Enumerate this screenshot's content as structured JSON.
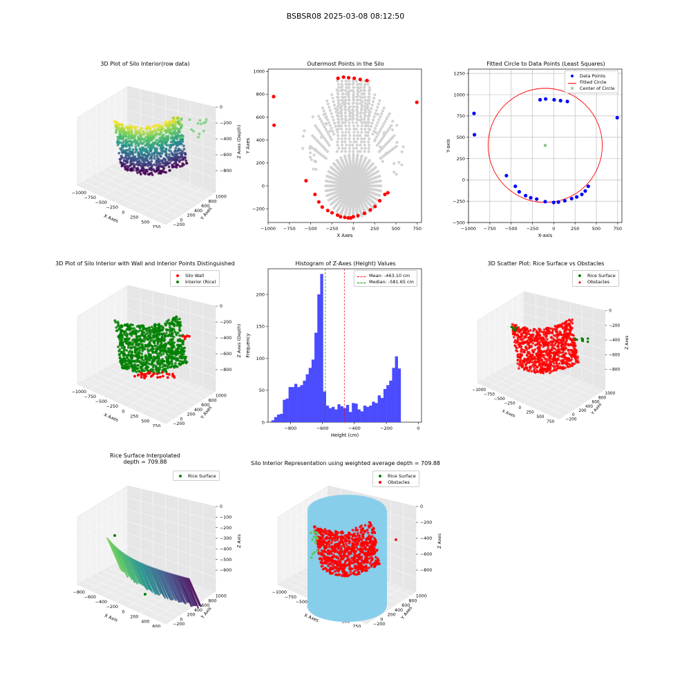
{
  "figure": {
    "suptitle": "BSBSR08 2025-03-08 08:12:50"
  },
  "panels": {
    "p1": {
      "title": "3D Plot of Silo Interior(row data)",
      "xlabel": "X Axes",
      "ylabel": "Y Axes",
      "zlabel": "Z Axes (Depth)",
      "xticks": [
        "−1000",
        "−750",
        "−500",
        "−250",
        "0",
        "250",
        "500",
        "750"
      ],
      "yticks": [
        "−200",
        "0",
        "200",
        "400",
        "600",
        "800",
        "1000"
      ],
      "zticks": [
        "0",
        "−200",
        "−400",
        "−600",
        "−800"
      ]
    },
    "p2": {
      "title": "Outermost Points in the Silo",
      "xlabel": "X Axes",
      "ylabel": "Y Axes",
      "xticks": [
        "−1000",
        "−750",
        "−500",
        "−250",
        "0",
        "250",
        "500",
        "750"
      ],
      "yticks": [
        "−200",
        "0",
        "200",
        "400",
        "600",
        "800",
        "1000"
      ]
    },
    "p3": {
      "title": "Fitted Circle to Data Points (Least Squares)",
      "xlabel": "X-axis",
      "ylabel": "Y-axis",
      "xticks": [
        "−1000",
        "−750",
        "−500",
        "−250",
        "0",
        "250",
        "500",
        "750"
      ],
      "yticks": [
        "−500",
        "−250",
        "0",
        "250",
        "500",
        "750",
        "1000",
        "1250"
      ],
      "legend": [
        "Data Points",
        "Fitted Circle",
        "Center of Circle"
      ]
    },
    "p4": {
      "title": "3D Plot of Silo Interior with Wall and Interior Points Distinguished",
      "xlabel": "X Axes",
      "ylabel": "Y Axes",
      "zlabel": "Z Axes (Depth)",
      "xticks": [
        "−1000",
        "−750",
        "−500",
        "−250",
        "0",
        "250",
        "500",
        "750"
      ],
      "yticks": [
        "−200",
        "0",
        "200",
        "400",
        "600",
        "800",
        "1000"
      ],
      "zticks": [
        "0",
        "−200",
        "−400",
        "−600",
        "−800"
      ],
      "legend": [
        "Silo Wall",
        "Interior (Rice)"
      ]
    },
    "p5": {
      "title": "Histogram of Z-Axes (Height) Values",
      "xlabel": "Height (cm)",
      "ylabel": "Frequency",
      "xticks": [
        "−800",
        "−600",
        "−400",
        "−200",
        "0"
      ],
      "yticks": [
        "0",
        "50",
        "100",
        "150",
        "200"
      ],
      "legend": [
        "Mean: -463.10 cm",
        "Median: -581.65 cm"
      ]
    },
    "p6": {
      "title": "3D Scatter Plot: Rice Surface vs Obstacles",
      "xlabel": "X Axes",
      "ylabel": "Y Axes",
      "zlabel": "Z Axes",
      "xticks": [
        "−1000",
        "−750",
        "−500",
        "−250",
        "0",
        "250",
        "500",
        "750"
      ],
      "yticks": [
        "−200",
        "0",
        "200",
        "400",
        "600",
        "800",
        "1000"
      ],
      "zticks": [
        "0",
        "−200",
        "−400",
        "−600",
        "−800"
      ],
      "legend": [
        "Rice Surface",
        "Obstacles"
      ]
    },
    "p7": {
      "title_line1": "Rice Surface Interpolated",
      "title_line2": "depth = 709.88",
      "xlabel": "X Axis",
      "ylabel": "Y Axis",
      "zlabel": "Z Axis",
      "xticks": [
        "−800",
        "−600",
        "−400",
        "−200",
        "0",
        "200",
        "400",
        "600"
      ],
      "yticks": [
        "−200",
        "0",
        "200",
        "400",
        "600",
        "800",
        "1000"
      ],
      "zticks": [
        "0",
        "−100",
        "−200",
        "−300",
        "−400",
        "−500",
        "−600"
      ],
      "legend": [
        "Rice Surface"
      ]
    },
    "p8": {
      "title": "Silo Interior Representation using weighted average depth = 709.88",
      "xlabel": "X Axes",
      "ylabel": "Y Axes",
      "zlabel": "Z Axes",
      "xticks": [
        "−1000",
        "−750",
        "−500",
        "−250",
        "0",
        "250",
        "500",
        "750"
      ],
      "yticks": [
        "−200",
        "0",
        "200",
        "400",
        "600",
        "800",
        "1000"
      ],
      "zticks": [
        "0",
        "−200",
        "−400",
        "−600",
        "−800"
      ],
      "legend": [
        "Rice Surface",
        "Obstacles"
      ]
    }
  },
  "colors": {
    "red": "#ff0000",
    "green": "#008000",
    "blue": "#0000ff",
    "gray": "#d3d3d3",
    "hist": "#4b4bff",
    "skyblue": "#87ceeb",
    "pane": "#f2f2f2"
  },
  "chart_data": [
    {
      "type": "scatter",
      "title": "Outermost Points in the Silo",
      "xlabel": "X Axes",
      "ylabel": "Y Axes",
      "xlim": [
        -1000,
        800
      ],
      "ylim": [
        -320,
        1020
      ],
      "series": [
        {
          "x": [
            -935,
            -930,
            -555,
            -450,
            -405,
            -365,
            -300,
            -250,
            -185,
            -150,
            -100,
            -60,
            -30,
            0,
            55,
            130,
            200,
            255,
            310,
            370,
            405,
            -180,
            -115,
            -55,
            10,
            80,
            160,
            745
          ],
          "y": [
            780,
            530,
            45,
            -75,
            -140,
            -185,
            -215,
            -235,
            -255,
            -270,
            -275,
            -280,
            -280,
            -270,
            -260,
            -240,
            -210,
            -180,
            -130,
            -75,
            -60,
            940,
            950,
            945,
            940,
            930,
            920,
            730
          ]
        }
      ]
    },
    {
      "type": "scatter",
      "title": "Fitted Circle to Data Points (Least Squares)",
      "xlabel": "X-axis",
      "ylabel": "Y-axis",
      "xlim": [
        -1000,
        800
      ],
      "ylim": [
        -500,
        1300
      ],
      "series": [
        {
          "name": "Data Points",
          "x": [
            -935,
            -930,
            -555,
            -450,
            -405,
            -330,
            -270,
            -200,
            -100,
            0,
            55,
            130,
            210,
            270,
            330,
            370,
            405,
            -160,
            -95,
            5,
            80,
            160,
            745
          ],
          "y": [
            780,
            530,
            50,
            -75,
            -140,
            -185,
            -210,
            -225,
            -255,
            -265,
            -260,
            -245,
            -220,
            -200,
            -170,
            -130,
            -75,
            940,
            950,
            940,
            930,
            920,
            730
          ]
        },
        {
          "name": "Fitted Circle",
          "center": [
            -100,
            405
          ],
          "radius": 670
        },
        {
          "name": "Center of Circle",
          "x": [
            -100
          ],
          "y": [
            405
          ]
        }
      ]
    },
    {
      "type": "bar",
      "title": "Histogram of Z-Axes (Height) Values",
      "xlabel": "Height (cm)",
      "ylabel": "Frequency",
      "xlim": [
        -940,
        20
      ],
      "ylim": [
        0,
        240
      ],
      "bin_start": -920,
      "bin_width": 18,
      "values": [
        3,
        8,
        12,
        13,
        35,
        37,
        55,
        55,
        60,
        55,
        58,
        65,
        75,
        85,
        98,
        140,
        200,
        232,
        48,
        26,
        22,
        24,
        20,
        28,
        25,
        22,
        27,
        16,
        30,
        29,
        20,
        17,
        26,
        24,
        26,
        32,
        30,
        42,
        38,
        52,
        58,
        65,
        85,
        103,
        84
      ],
      "mean": -463.1,
      "median": -581.65
    }
  ]
}
